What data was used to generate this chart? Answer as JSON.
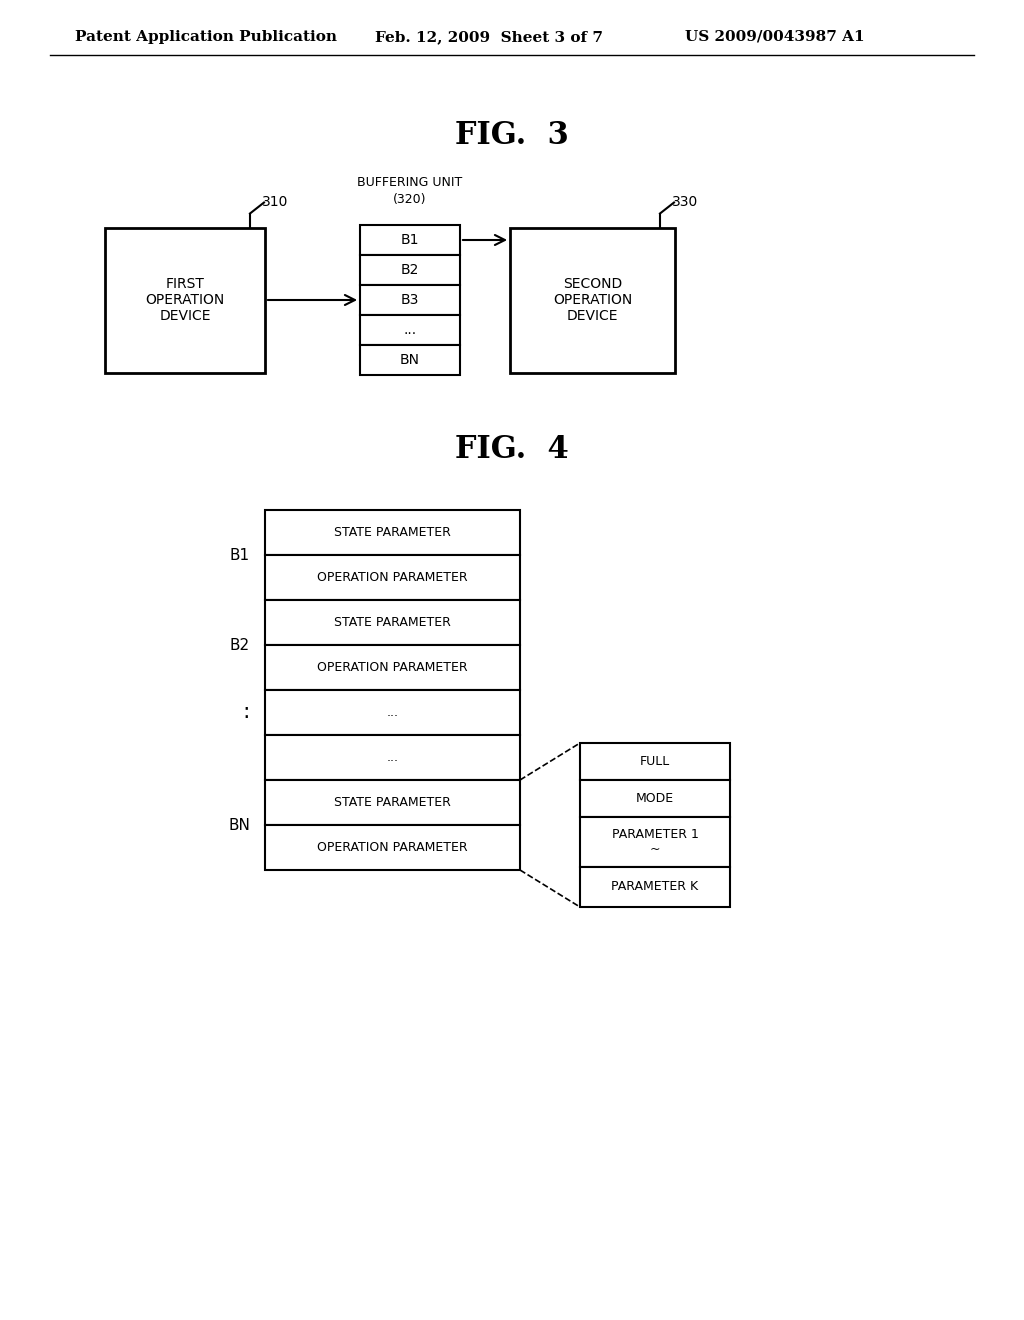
{
  "background_color": "#ffffff",
  "header_text": "Patent Application Publication",
  "header_date": "Feb. 12, 2009  Sheet 3 of 7",
  "header_patent": "US 2009/0043987 A1",
  "fig3_title": "FIG.  3",
  "fig4_title": "FIG.  4",
  "fig3": {
    "first_device_label": "FIRST\nOPERATION\nDEVICE",
    "first_device_ref": "310",
    "buffering_unit_label": "BUFFERING UNIT\n(320)",
    "buffer_cells": [
      "B1",
      "B2",
      "B3",
      "...",
      "BN"
    ],
    "second_device_label": "SECOND\nOPERATION\nDEVICE",
    "second_device_ref": "330"
  },
  "fig4": {
    "main_rows": [
      {
        "label": "STATE PARAMETER",
        "group": "B1"
      },
      {
        "label": "OPERATION PARAMETER",
        "group": "B1"
      },
      {
        "label": "STATE PARAMETER",
        "group": "B2"
      },
      {
        "label": "OPERATION PARAMETER",
        "group": "B2"
      },
      {
        "label": "...",
        "group": "colon"
      },
      {
        "label": "...",
        "group": "colon"
      },
      {
        "label": "STATE PARAMETER",
        "group": "BN"
      },
      {
        "label": "OPERATION PARAMETER",
        "group": "BN"
      }
    ],
    "detail_rows": [
      "FULL",
      "MODE",
      "PARAMETER 1\n~",
      "PARAMETER K"
    ]
  }
}
